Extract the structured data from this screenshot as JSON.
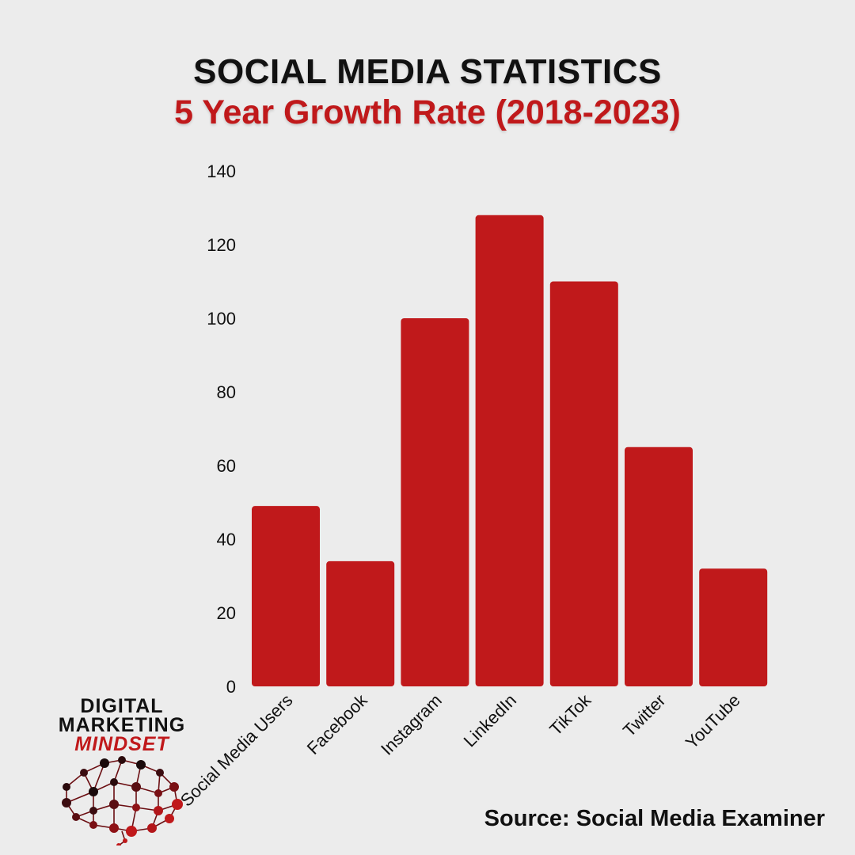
{
  "chart_data": {
    "type": "bar",
    "title": "SOCIAL MEDIA STATISTICS",
    "subtitle": "5 Year Growth Rate (2018-2023)",
    "categories": [
      "Social Media Users",
      "Facebook",
      "Instagram",
      "LinkedIn",
      "TikTok",
      "Twitter",
      "YouTube"
    ],
    "values": [
      49,
      34,
      100,
      128,
      110,
      65,
      32
    ],
    "ylim": [
      0,
      140
    ],
    "yticks": [
      0,
      20,
      40,
      60,
      80,
      100,
      120,
      140
    ],
    "grid": false,
    "bar_color": "#c0191b"
  },
  "logo": {
    "line1": "DIGITAL",
    "line2": "MARKETING",
    "line3": "MINDSET",
    "icon": "brain-network-icon"
  },
  "source": "Source: Social Media Examiner"
}
